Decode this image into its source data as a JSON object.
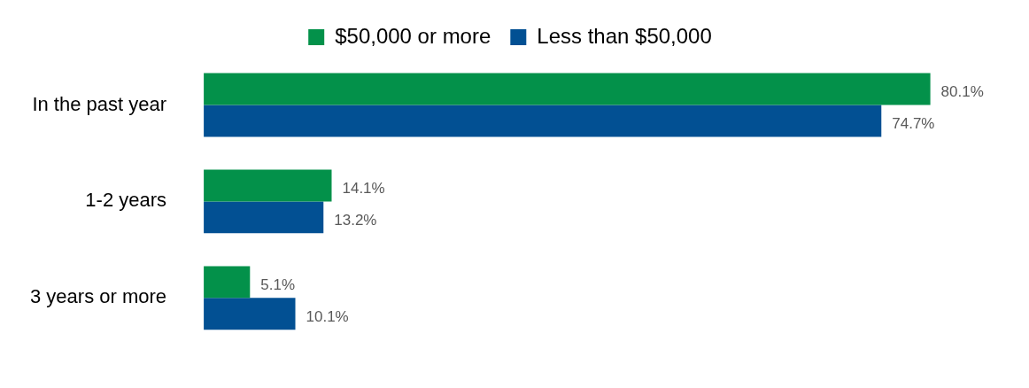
{
  "chart_data": {
    "type": "bar",
    "orientation": "horizontal",
    "categories": [
      "In the past year",
      "1-2 years",
      "3 years or more"
    ],
    "series": [
      {
        "name": "$50,000 or more",
        "color": "#03914a",
        "values": [
          80.1,
          14.1,
          5.1
        ],
        "value_labels": [
          "80.1%",
          "14.1%",
          "5.1%"
        ]
      },
      {
        "name": "Less than $50,000",
        "color": "#025093",
        "values": [
          74.7,
          13.2,
          10.1
        ],
        "value_labels": [
          "74.7%",
          "13.2%",
          "10.1%"
        ]
      }
    ],
    "legend": "top"
  }
}
